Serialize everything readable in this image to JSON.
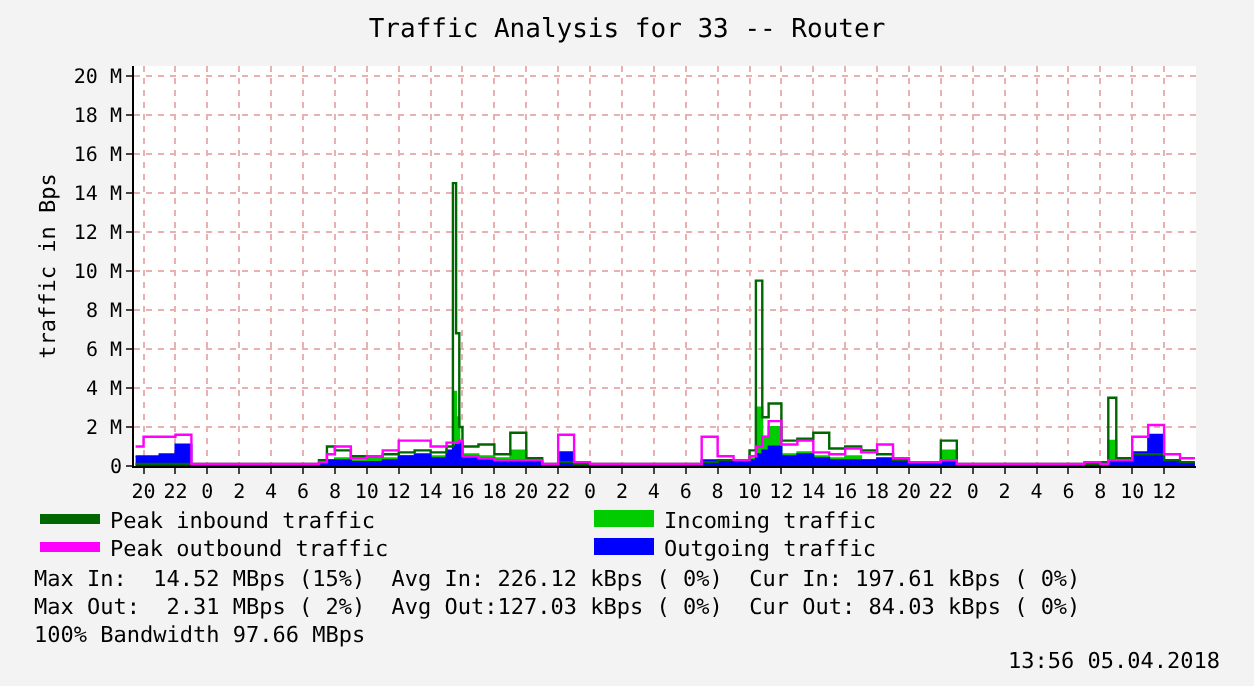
{
  "chart_data": {
    "type": "area",
    "title": "Traffic Analysis for 33 -- Router",
    "ylabel": "traffic in Bps",
    "x": [
      "2018-04-02T19:30",
      "2018-04-02T20:00",
      "2018-04-02T21:00",
      "2018-04-02T22:00",
      "2018-04-02T23:00",
      "2018-04-03T00:00",
      "2018-04-03T02:00",
      "2018-04-03T04:00",
      "2018-04-03T06:00",
      "2018-04-03T07:00",
      "2018-04-03T07:30",
      "2018-04-03T08:00",
      "2018-04-03T09:00",
      "2018-04-03T10:00",
      "2018-04-03T11:00",
      "2018-04-03T12:00",
      "2018-04-03T13:00",
      "2018-04-03T14:00",
      "2018-04-03T15:00",
      "2018-04-03T15:24",
      "2018-04-03T15:36",
      "2018-04-03T15:48",
      "2018-04-03T16:00",
      "2018-04-03T17:00",
      "2018-04-03T18:00",
      "2018-04-03T19:00",
      "2018-04-03T20:00",
      "2018-04-03T21:00",
      "2018-04-03T22:00",
      "2018-04-03T23:00",
      "2018-04-04T00:00",
      "2018-04-04T03:00",
      "2018-04-04T06:00",
      "2018-04-04T07:00",
      "2018-04-04T08:00",
      "2018-04-04T09:00",
      "2018-04-04T10:00",
      "2018-04-04T10:24",
      "2018-04-04T10:48",
      "2018-04-04T11:12",
      "2018-04-04T12:00",
      "2018-04-04T13:00",
      "2018-04-04T14:00",
      "2018-04-04T15:00",
      "2018-04-04T16:00",
      "2018-04-04T17:00",
      "2018-04-04T18:00",
      "2018-04-04T19:00",
      "2018-04-04T20:00",
      "2018-04-04T21:00",
      "2018-04-04T22:00",
      "2018-04-04T23:00",
      "2018-04-05T00:00",
      "2018-04-05T03:00",
      "2018-04-05T06:00",
      "2018-04-05T07:00",
      "2018-04-05T08:00",
      "2018-04-05T08:30",
      "2018-04-05T09:00",
      "2018-04-05T10:00",
      "2018-04-05T11:00",
      "2018-04-05T12:00",
      "2018-04-05T13:00",
      "2018-04-05T13:56"
    ],
    "series": [
      {
        "name": "Peak inbound traffic",
        "type": "step",
        "color": "#006600",
        "values": [
          100000,
          100000,
          100000,
          100000,
          100000,
          100000,
          100000,
          100000,
          100000,
          300000,
          1000000,
          800000,
          500000,
          500000,
          600000,
          700000,
          800000,
          700000,
          1000000,
          14500000,
          6800000,
          2000000,
          1000000,
          1100000,
          600000,
          1700000,
          400000,
          100000,
          200000,
          100000,
          100000,
          100000,
          100000,
          200000,
          300000,
          300000,
          800000,
          9500000,
          2500000,
          3200000,
          1300000,
          1400000,
          1700000,
          900000,
          1000000,
          800000,
          600000,
          300000,
          200000,
          200000,
          1300000,
          100000,
          100000,
          100000,
          100000,
          100000,
          200000,
          3500000,
          400000,
          600000,
          600000,
          300000,
          200000,
          200000
        ]
      },
      {
        "name": "Incoming traffic",
        "color": "#00cc00",
        "values": [
          0,
          0,
          0,
          0,
          0,
          0,
          0,
          0,
          0,
          100000,
          300000,
          400000,
          300000,
          400000,
          400000,
          500000,
          500000,
          500000,
          600000,
          3800000,
          2500000,
          1200000,
          600000,
          500000,
          400000,
          800000,
          200000,
          0,
          100000,
          0,
          0,
          0,
          0,
          100000,
          100000,
          100000,
          400000,
          3000000,
          1500000,
          2000000,
          600000,
          700000,
          500000,
          400000,
          500000,
          300000,
          300000,
          200000,
          100000,
          100000,
          800000,
          0,
          0,
          0,
          0,
          0,
          100000,
          1300000,
          200000,
          300000,
          null,
          200000,
          100000,
          100000
        ]
      },
      {
        "name": "Peak outbound traffic",
        "type": "step",
        "color": "#ff00ff",
        "values": [
          1000000,
          1500000,
          1500000,
          1600000,
          100000,
          100000,
          100000,
          100000,
          100000,
          200000,
          600000,
          1000000,
          400000,
          500000,
          800000,
          1300000,
          1300000,
          1000000,
          1200000,
          1200000,
          1200000,
          1300000,
          500000,
          400000,
          300000,
          300000,
          300000,
          100000,
          1600000,
          200000,
          100000,
          100000,
          100000,
          1500000,
          500000,
          300000,
          500000,
          1000000,
          1500000,
          2300000,
          1100000,
          1300000,
          700000,
          600000,
          900000,
          700000,
          1100000,
          400000,
          200000,
          200000,
          300000,
          100000,
          100000,
          100000,
          100000,
          200000,
          100000,
          300000,
          300000,
          1500000,
          2100000,
          600000,
          400000,
          400000
        ]
      },
      {
        "name": "Outgoing traffic",
        "color": "#0000ff",
        "values": [
          500000,
          500000,
          600000,
          1100000,
          0,
          0,
          0,
          0,
          0,
          100000,
          300000,
          300000,
          200000,
          200000,
          300000,
          500000,
          600000,
          400000,
          800000,
          1000000,
          1100000,
          1200000,
          400000,
          300000,
          200000,
          200000,
          200000,
          0,
          700000,
          100000,
          0,
          0,
          0,
          300000,
          200000,
          200000,
          300000,
          600000,
          800000,
          1000000,
          500000,
          600000,
          400000,
          300000,
          300000,
          300000,
          400000,
          200000,
          100000,
          100000,
          200000,
          0,
          0,
          0,
          0,
          100000,
          0,
          200000,
          200000,
          700000,
          1600000,
          300000,
          100000,
          100000
        ]
      }
    ],
    "xlim": [
      "2018-04-02T19:24",
      "2018-04-05T14:00"
    ],
    "xticks": [
      {
        "value": "2018-04-02T20:00",
        "label": "20"
      },
      {
        "value": "2018-04-02T22:00",
        "label": "22"
      },
      {
        "value": "2018-04-03T00:00",
        "label": "0"
      },
      {
        "value": "2018-04-03T02:00",
        "label": "2"
      },
      {
        "value": "2018-04-03T04:00",
        "label": "4"
      },
      {
        "value": "2018-04-03T06:00",
        "label": "6"
      },
      {
        "value": "2018-04-03T08:00",
        "label": "8"
      },
      {
        "value": "2018-04-03T10:00",
        "label": "10"
      },
      {
        "value": "2018-04-03T12:00",
        "label": "12"
      },
      {
        "value": "2018-04-03T14:00",
        "label": "14"
      },
      {
        "value": "2018-04-03T16:00",
        "label": "16"
      },
      {
        "value": "2018-04-03T18:00",
        "label": "18"
      },
      {
        "value": "2018-04-03T20:00",
        "label": "20"
      },
      {
        "value": "2018-04-03T22:00",
        "label": "22"
      },
      {
        "value": "2018-04-04T00:00",
        "label": "0"
      },
      {
        "value": "2018-04-04T02:00",
        "label": "2"
      },
      {
        "value": "2018-04-04T04:00",
        "label": "4"
      },
      {
        "value": "2018-04-04T06:00",
        "label": "6"
      },
      {
        "value": "2018-04-04T08:00",
        "label": "8"
      },
      {
        "value": "2018-04-04T10:00",
        "label": "10"
      },
      {
        "value": "2018-04-04T12:00",
        "label": "12"
      },
      {
        "value": "2018-04-04T14:00",
        "label": "14"
      },
      {
        "value": "2018-04-04T16:00",
        "label": "16"
      },
      {
        "value": "2018-04-04T18:00",
        "label": "18"
      },
      {
        "value": "2018-04-04T20:00",
        "label": "20"
      },
      {
        "value": "2018-04-04T22:00",
        "label": "22"
      },
      {
        "value": "2018-04-05T00:00",
        "label": "0"
      },
      {
        "value": "2018-04-05T02:00",
        "label": "2"
      },
      {
        "value": "2018-04-05T04:00",
        "label": "4"
      },
      {
        "value": "2018-04-05T06:00",
        "label": "6"
      },
      {
        "value": "2018-04-05T08:00",
        "label": "8"
      },
      {
        "value": "2018-04-05T10:00",
        "label": "10"
      },
      {
        "value": "2018-04-05T12:00",
        "label": "12"
      }
    ],
    "ylim": [
      0,
      20500000
    ],
    "yticks": [
      0,
      {
        "value": 2000000,
        "label": "2 M"
      },
      {
        "value": 4000000,
        "label": "4 M"
      },
      {
        "value": 6000000,
        "label": "6 M"
      },
      {
        "value": 8000000,
        "label": "8 M"
      },
      {
        "value": 10000000,
        "label": "10 M"
      },
      {
        "value": 12000000,
        "label": "12 M"
      },
      {
        "value": 14000000,
        "label": "14 M"
      },
      {
        "value": 16000000,
        "label": "16 M"
      },
      {
        "value": 18000000,
        "label": "18 M"
      },
      {
        "value": 20000000,
        "label": "20 M"
      }
    ],
    "grid": true,
    "legend": "bottom",
    "annotations": [
      "Max In:  14.52 MBps (15%)  Avg In: 226.12 kBps ( 0%)  Cur In: 197.61 kBps ( 0%)",
      "Max Out:  2.31 MBps ( 2%)  Avg Out:127.03 kBps ( 0%)  Cur Out: 84.03 kBps ( 0%)",
      "100% Bandwidth 97.66 MBps",
      "13:56 05.04.2018"
    ]
  }
}
